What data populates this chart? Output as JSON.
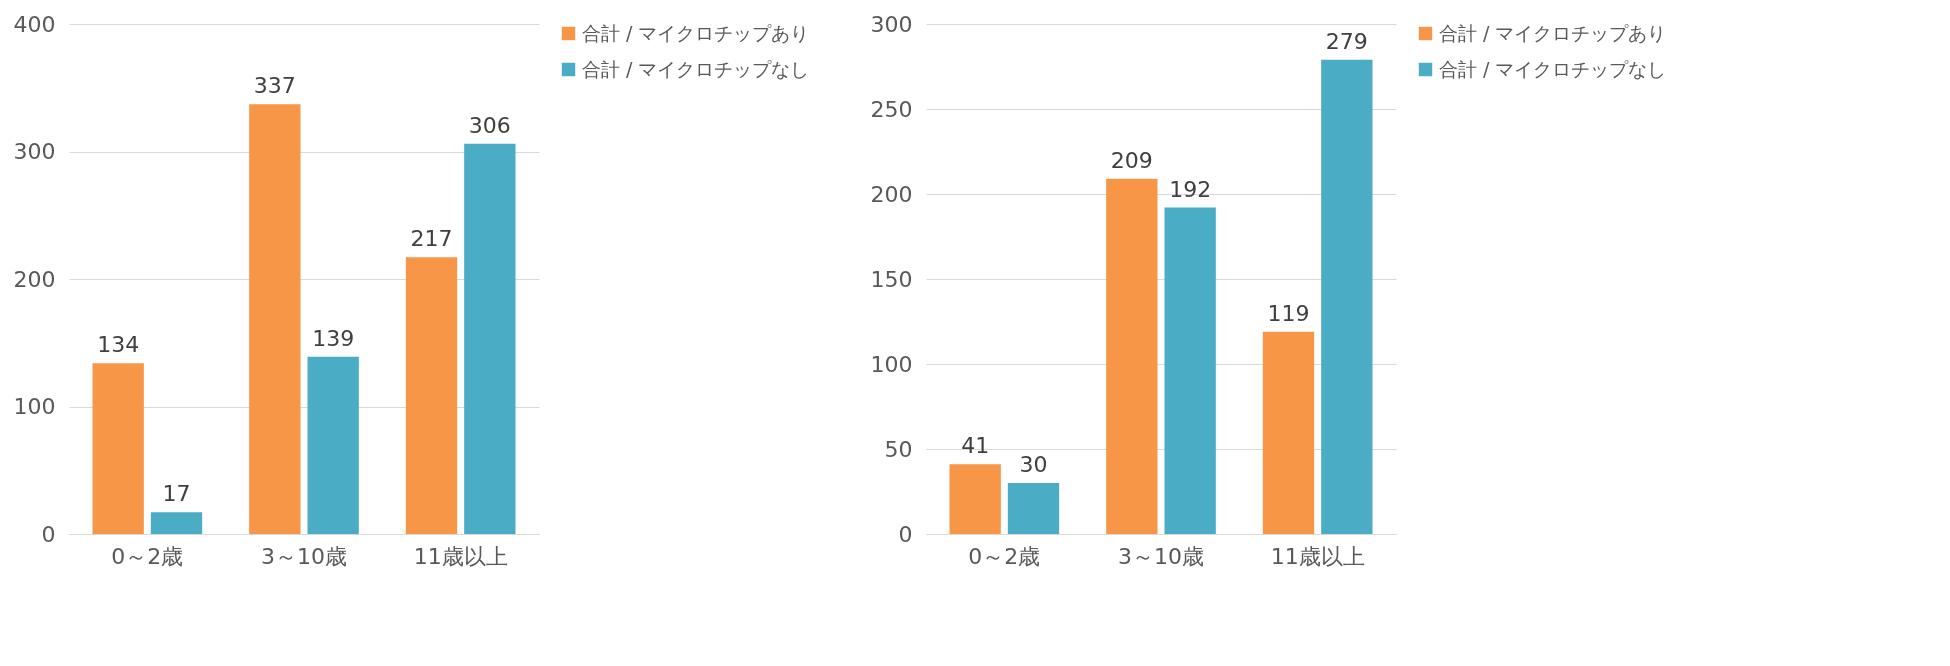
{
  "chart_data": [
    {
      "type": "bar",
      "categories": [
        "0～2歳",
        "3～10歳",
        "11歳以上"
      ],
      "series": [
        {
          "name": "合計 / マイクロチップあり",
          "color": "#f79646",
          "values": [
            134,
            337,
            217
          ]
        },
        {
          "name": "合計 / マイクロチップなし",
          "color": "#4bacc6",
          "values": [
            17,
            139,
            306
          ]
        }
      ],
      "ylim": [
        0,
        400
      ],
      "yticks": [
        0,
        100,
        200,
        300,
        400
      ],
      "grid": "y",
      "legend": "right",
      "data_labels": true
    },
    {
      "type": "bar",
      "categories": [
        "0～2歳",
        "3～10歳",
        "11歳以上"
      ],
      "series": [
        {
          "name": "合計 / マイクロチップあり",
          "color": "#f79646",
          "values": [
            41,
            209,
            119
          ]
        },
        {
          "name": "合計 / マイクロチップなし",
          "color": "#4bacc6",
          "values": [
            30,
            192,
            279
          ]
        }
      ],
      "ylim": [
        0,
        300
      ],
      "yticks": [
        0,
        50,
        100,
        150,
        200,
        250,
        300
      ],
      "grid": "y",
      "legend": "right",
      "data_labels": true
    }
  ]
}
